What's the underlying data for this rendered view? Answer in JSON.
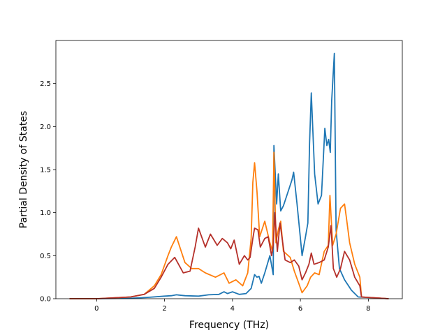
{
  "chart_data": {
    "type": "line",
    "title": "",
    "xlabel": "Frequency (THz)",
    "ylabel": "Partial Density of States",
    "xlim": [
      -1.2,
      9.0
    ],
    "ylim": [
      0.0,
      3.0
    ],
    "xticks": [
      0,
      2,
      4,
      6,
      8
    ],
    "xtick_labels": [
      "0",
      "2",
      "4",
      "6",
      "8"
    ],
    "yticks": [
      0.0,
      0.5,
      1.0,
      1.5,
      2.0,
      2.5
    ],
    "ytick_labels": [
      "0.0",
      "0.5",
      "1.0",
      "1.5",
      "2.0",
      "2.5"
    ],
    "grid": false,
    "legend": "none",
    "series": [
      {
        "color": "#1f77b4",
        "x": [
          -0.8,
          0.0,
          1.0,
          1.5,
          2.0,
          2.2,
          2.35,
          2.6,
          3.0,
          3.3,
          3.6,
          3.75,
          3.85,
          4.0,
          4.2,
          4.4,
          4.55,
          4.65,
          4.72,
          4.78,
          4.85,
          4.95,
          5.1,
          5.2,
          5.22,
          5.3,
          5.35,
          5.42,
          5.5,
          5.6,
          5.75,
          5.8,
          5.9,
          5.97,
          6.05,
          6.15,
          6.22,
          6.27,
          6.32,
          6.42,
          6.52,
          6.62,
          6.72,
          6.78,
          6.83,
          6.88,
          6.92,
          7.0,
          7.05,
          7.15,
          7.3,
          7.5,
          7.7,
          8.6
        ],
        "y": [
          0.0,
          0.0,
          0.005,
          0.015,
          0.03,
          0.035,
          0.045,
          0.035,
          0.03,
          0.045,
          0.05,
          0.08,
          0.06,
          0.08,
          0.05,
          0.06,
          0.12,
          0.28,
          0.25,
          0.26,
          0.18,
          0.3,
          0.5,
          0.28,
          1.78,
          1.1,
          1.45,
          1.02,
          1.08,
          1.2,
          1.38,
          1.47,
          1.1,
          0.82,
          0.5,
          0.72,
          0.88,
          1.8,
          2.39,
          1.45,
          1.1,
          1.2,
          1.98,
          1.78,
          1.85,
          1.7,
          2.3,
          2.85,
          0.8,
          0.35,
          0.22,
          0.1,
          0.02,
          0.0
        ]
      },
      {
        "color": "#ff7f0e",
        "x": [
          -0.8,
          0.0,
          1.0,
          1.4,
          1.7,
          1.9,
          2.1,
          2.2,
          2.35,
          2.6,
          2.8,
          3.0,
          3.2,
          3.5,
          3.75,
          3.9,
          4.1,
          4.3,
          4.45,
          4.55,
          4.6,
          4.65,
          4.72,
          4.8,
          4.95,
          5.1,
          5.18,
          5.22,
          5.28,
          5.35,
          5.42,
          5.5,
          5.7,
          5.82,
          5.95,
          6.05,
          6.2,
          6.3,
          6.42,
          6.55,
          6.7,
          6.82,
          6.87,
          6.95,
          7.05,
          7.18,
          7.3,
          7.35,
          7.45,
          7.6,
          7.75,
          7.8,
          8.6
        ],
        "y": [
          0.0,
          0.0,
          0.02,
          0.05,
          0.15,
          0.28,
          0.5,
          0.6,
          0.72,
          0.42,
          0.35,
          0.35,
          0.3,
          0.25,
          0.3,
          0.18,
          0.22,
          0.15,
          0.3,
          0.7,
          1.35,
          1.58,
          1.25,
          0.72,
          0.9,
          0.65,
          0.55,
          1.7,
          0.65,
          0.8,
          0.9,
          0.55,
          0.48,
          0.32,
          0.18,
          0.07,
          0.15,
          0.25,
          0.3,
          0.28,
          0.55,
          0.62,
          1.2,
          0.62,
          0.75,
          1.05,
          1.1,
          0.95,
          0.65,
          0.4,
          0.25,
          0.02,
          0.0
        ]
      },
      {
        "color": "#b5302a",
        "x": [
          -0.8,
          0.0,
          1.0,
          1.4,
          1.7,
          1.9,
          2.1,
          2.3,
          2.55,
          2.75,
          2.9,
          3.0,
          3.2,
          3.35,
          3.55,
          3.7,
          3.85,
          3.95,
          4.05,
          4.2,
          4.35,
          4.45,
          4.52,
          4.6,
          4.65,
          4.75,
          4.82,
          4.95,
          5.05,
          5.15,
          5.2,
          5.25,
          5.32,
          5.4,
          5.55,
          5.7,
          5.82,
          5.95,
          6.05,
          6.15,
          6.25,
          6.32,
          6.4,
          6.55,
          6.7,
          6.82,
          6.9,
          6.97,
          7.07,
          7.18,
          7.3,
          7.45,
          7.6,
          7.75,
          7.8,
          8.6
        ],
        "y": [
          0.0,
          0.0,
          0.02,
          0.05,
          0.12,
          0.25,
          0.4,
          0.48,
          0.3,
          0.32,
          0.6,
          0.82,
          0.6,
          0.75,
          0.62,
          0.7,
          0.65,
          0.58,
          0.68,
          0.4,
          0.5,
          0.45,
          0.48,
          0.7,
          0.82,
          0.8,
          0.6,
          0.7,
          0.72,
          0.5,
          0.62,
          1.0,
          0.55,
          0.88,
          0.45,
          0.42,
          0.45,
          0.38,
          0.22,
          0.3,
          0.4,
          0.53,
          0.4,
          0.42,
          0.45,
          0.6,
          0.85,
          0.35,
          0.25,
          0.35,
          0.55,
          0.45,
          0.25,
          0.15,
          0.02,
          0.0
        ]
      }
    ]
  }
}
